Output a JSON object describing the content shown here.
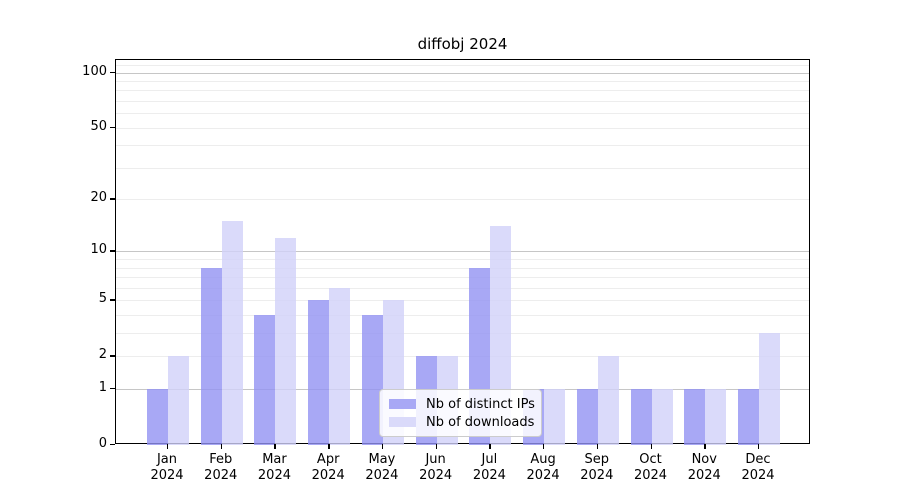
{
  "chart_data": {
    "type": "bar",
    "title": "diffobj 2024",
    "y_scale": "log1p",
    "ylim": [
      0,
      117
    ],
    "y_ticks": [
      0,
      1,
      2,
      5,
      10,
      20,
      50,
      100
    ],
    "grid": true,
    "legend_position": "inside-bottom-center",
    "categories": [
      {
        "month": "Jan",
        "year": "2024"
      },
      {
        "month": "Feb",
        "year": "2024"
      },
      {
        "month": "Mar",
        "year": "2024"
      },
      {
        "month": "Apr",
        "year": "2024"
      },
      {
        "month": "May",
        "year": "2024"
      },
      {
        "month": "Jun",
        "year": "2024"
      },
      {
        "month": "Jul",
        "year": "2024"
      },
      {
        "month": "Aug",
        "year": "2024"
      },
      {
        "month": "Sep",
        "year": "2024"
      },
      {
        "month": "Oct",
        "year": "2024"
      },
      {
        "month": "Nov",
        "year": "2024"
      },
      {
        "month": "Dec",
        "year": "2024"
      }
    ],
    "series": [
      {
        "name": "Nb of distinct IPs",
        "color": "#a8a8f5",
        "fill": "rgba(146,146,243,0.8)",
        "values": [
          1,
          8,
          4,
          5,
          4,
          2,
          8,
          1,
          1,
          1,
          1,
          1
        ]
      },
      {
        "name": "Nb of downloads",
        "color": "#dadafa",
        "fill": "rgba(209,209,249,0.8)",
        "values": [
          2,
          15,
          12,
          6,
          5,
          2,
          14,
          1,
          2,
          1,
          1,
          3
        ]
      }
    ]
  },
  "colors": {
    "grid_major": "#c6c6c6",
    "grid_minor": "#ededed",
    "axis": "#000000",
    "background": "#ffffff"
  }
}
